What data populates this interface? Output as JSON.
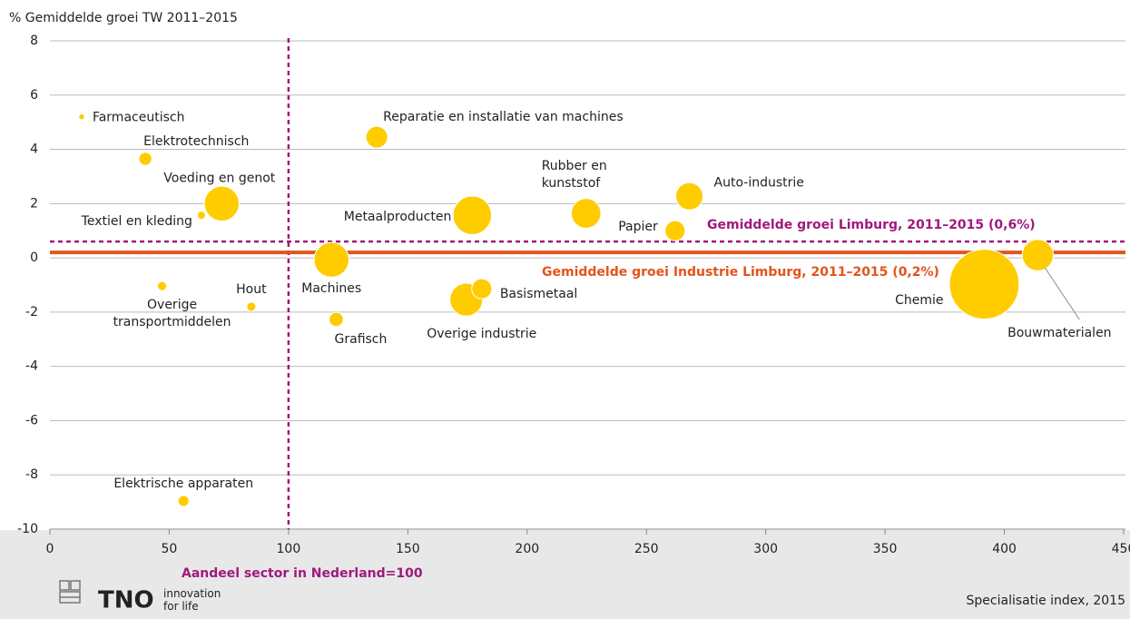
{
  "chart_data": {
    "type": "bubble",
    "y_axis_label": "% Gemiddelde groei TW 2011–2015",
    "x_axis_label": "Specialisatie index, 2015",
    "xlim": [
      0,
      450
    ],
    "xticks": [
      0,
      50,
      100,
      150,
      200,
      250,
      300,
      350,
      400,
      450
    ],
    "ylim": [
      -10,
      8
    ],
    "yticks": [
      -10,
      -8,
      -6,
      -4,
      -2,
      0,
      2,
      4,
      6,
      8
    ],
    "grid": true,
    "color": "#ffcc00",
    "labels": [
      "Farmaceutisch",
      "Elektrotechnisch",
      "Voeding en genot",
      "Textiel en kleding",
      "Overige\ntransportmiddelen",
      "Hout",
      "Elektrische apparaten",
      "Reparatie en installatie van machines",
      "Machines",
      "Grafisch",
      "Metaalproducten",
      "Overige industrie",
      "Basismetaal",
      "Rubber en\nkunststof",
      "Papier",
      "Auto-industrie",
      "Chemie",
      "Bouwmaterialen"
    ],
    "x": [
      13.3,
      40,
      72,
      63.5,
      47,
      84.4,
      56,
      137,
      118,
      120,
      177,
      174.5,
      181,
      224.7,
      262,
      268,
      391.6,
      414
    ],
    "values": [
      5.2,
      3.65,
      2.0,
      1.57,
      -1.04,
      -1.8,
      -8.96,
      4.45,
      -0.07,
      -2.27,
      1.57,
      -1.54,
      -1.14,
      1.64,
      1.0,
      2.27,
      -0.97,
      0.1
    ],
    "sizes": [
      1,
      5,
      36,
      2,
      2.5,
      2.5,
      3.6,
      14,
      36,
      6,
      44,
      32,
      12,
      26,
      12,
      22,
      144,
      29
    ],
    "reference_lines": [
      {
        "axis": "x",
        "value": 100,
        "label": "Aandeel sector in Nederland=100",
        "color": "#a0197d",
        "dashed": true
      },
      {
        "axis": "y",
        "value": 0.6,
        "label": "Gemiddelde groei Limburg, 2011–2015 (0,6%)",
        "color": "#a0197d",
        "dashed": true
      },
      {
        "axis": "y",
        "value": 0.2,
        "label": "Gemiddelde groei Industrie Limburg, 2011–2015 (0,2%)",
        "color": "#e3541b",
        "dashed": false
      }
    ]
  },
  "footer": {
    "logo": "TNO",
    "tagline": "innovation\nfor life"
  }
}
